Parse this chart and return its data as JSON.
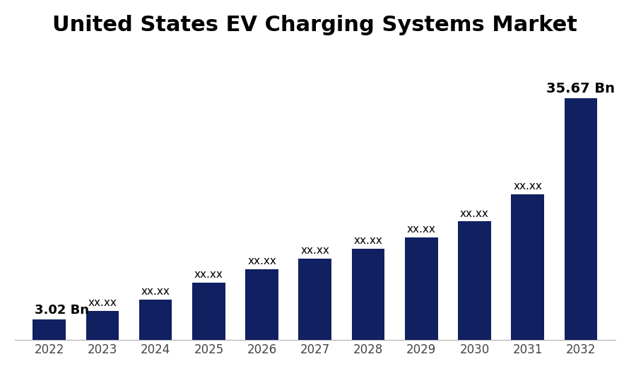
{
  "title": "United States EV Charging Systems Market",
  "title_fontsize": 22,
  "title_fontweight": "bold",
  "years": [
    2022,
    2023,
    2024,
    2025,
    2026,
    2027,
    2028,
    2029,
    2030,
    2031,
    2032
  ],
  "values": [
    3.02,
    4.3,
    6.0,
    8.5,
    10.5,
    12.0,
    13.5,
    15.2,
    17.5,
    21.5,
    35.67
  ],
  "bar_color": "#102060",
  "background_color": "#ffffff",
  "label_2022": "3.02 Bn",
  "label_2032": "35.67 Bn",
  "label_hidden": "xx.xx",
  "label_fontsize": 11,
  "label_2022_fontsize": 13,
  "label_2032_fontsize": 14,
  "bar_width": 0.62,
  "ylim": [
    0,
    43
  ],
  "tick_color": "#444444",
  "spine_color": "#bbbbbb"
}
